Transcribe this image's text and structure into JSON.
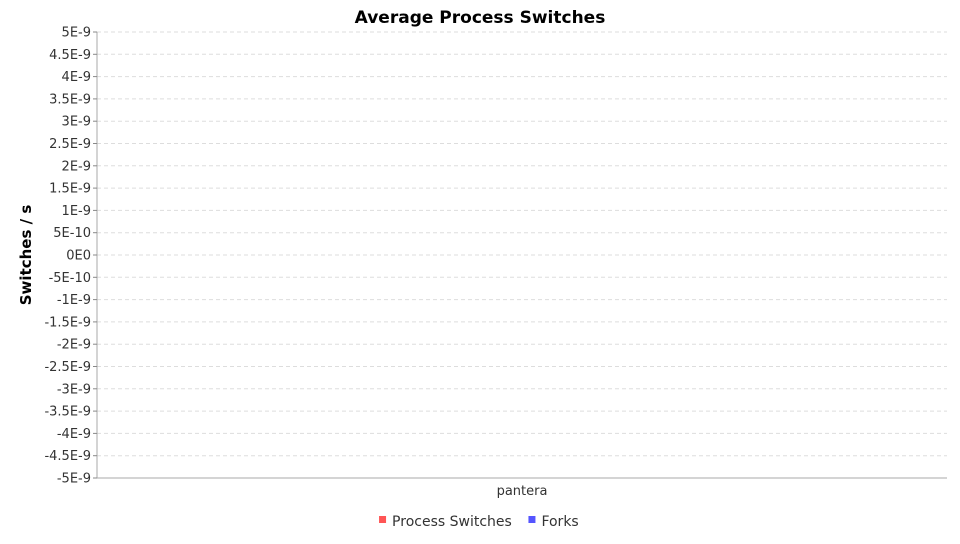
{
  "chart_data": {
    "type": "bar",
    "title": "Average Process Switches",
    "xlabel": "",
    "ylabel": "Switches / s",
    "categories": [
      "pantera"
    ],
    "series": [
      {
        "name": "Process Switches",
        "values": [
          0
        ],
        "color": "#ff5555"
      },
      {
        "name": "Forks",
        "values": [
          0
        ],
        "color": "#5555ff"
      }
    ],
    "ylim": [
      -5e-09,
      5e-09
    ],
    "y_ticks": [
      5e-09,
      4.5e-09,
      4e-09,
      3.5e-09,
      3e-09,
      2.5e-09,
      2e-09,
      1.5e-09,
      1e-09,
      5e-10,
      0,
      -5e-10,
      -1e-09,
      -1.5e-09,
      -2e-09,
      -2.5e-09,
      -3e-09,
      -3.5e-09,
      -4e-09,
      -4.5e-09,
      -5e-09
    ],
    "y_tick_labels": [
      "5E-9",
      "4.5E-9",
      "4E-9",
      "3.5E-9",
      "3E-9",
      "2.5E-9",
      "2E-9",
      "1.5E-9",
      "1E-9",
      "5E-10",
      "0E0",
      "-5E-10",
      "-1E-9",
      "-1.5E-9",
      "-2E-9",
      "-2.5E-9",
      "-3E-9",
      "-3.5E-9",
      "-4E-9",
      "-4.5E-9",
      "-5E-9"
    ],
    "grid": true,
    "legend_position": "bottom"
  }
}
